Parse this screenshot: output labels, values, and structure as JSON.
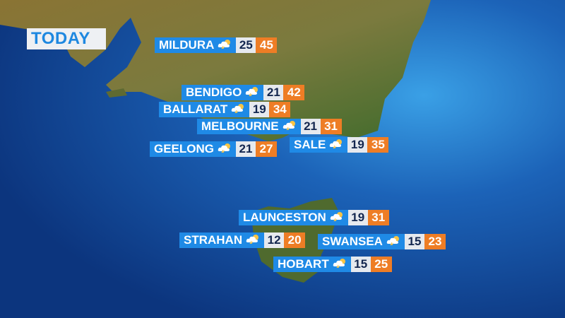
{
  "title": "TODAY",
  "colors": {
    "city": "#1f8ae6",
    "min": "#e6e9ee",
    "max": "#ee7d25",
    "ocean": "#0d3f8f",
    "land": "#7a7a3a"
  },
  "locations": [
    {
      "name": "MILDURA",
      "icon": "storm-icon",
      "min": "25",
      "max": "45"
    },
    {
      "name": "BENDIGO",
      "icon": "storm-icon",
      "min": "21",
      "max": "42"
    },
    {
      "name": "BALLARAT",
      "icon": "storm-icon",
      "min": "19",
      "max": "34"
    },
    {
      "name": "MELBOURNE",
      "icon": "storm-icon",
      "min": "21",
      "max": "31"
    },
    {
      "name": "GEELONG",
      "icon": "storm-icon",
      "min": "21",
      "max": "27"
    },
    {
      "name": "SALE",
      "icon": "storm-icon",
      "min": "19",
      "max": "35"
    },
    {
      "name": "LAUNCESTON",
      "icon": "storm-icon",
      "min": "19",
      "max": "31"
    },
    {
      "name": "STRAHAN",
      "icon": "storm-icon",
      "min": "12",
      "max": "20"
    },
    {
      "name": "SWANSEA",
      "icon": "storm-icon",
      "min": "15",
      "max": "23"
    },
    {
      "name": "HOBART",
      "icon": "storm-icon",
      "min": "15",
      "max": "25"
    }
  ]
}
